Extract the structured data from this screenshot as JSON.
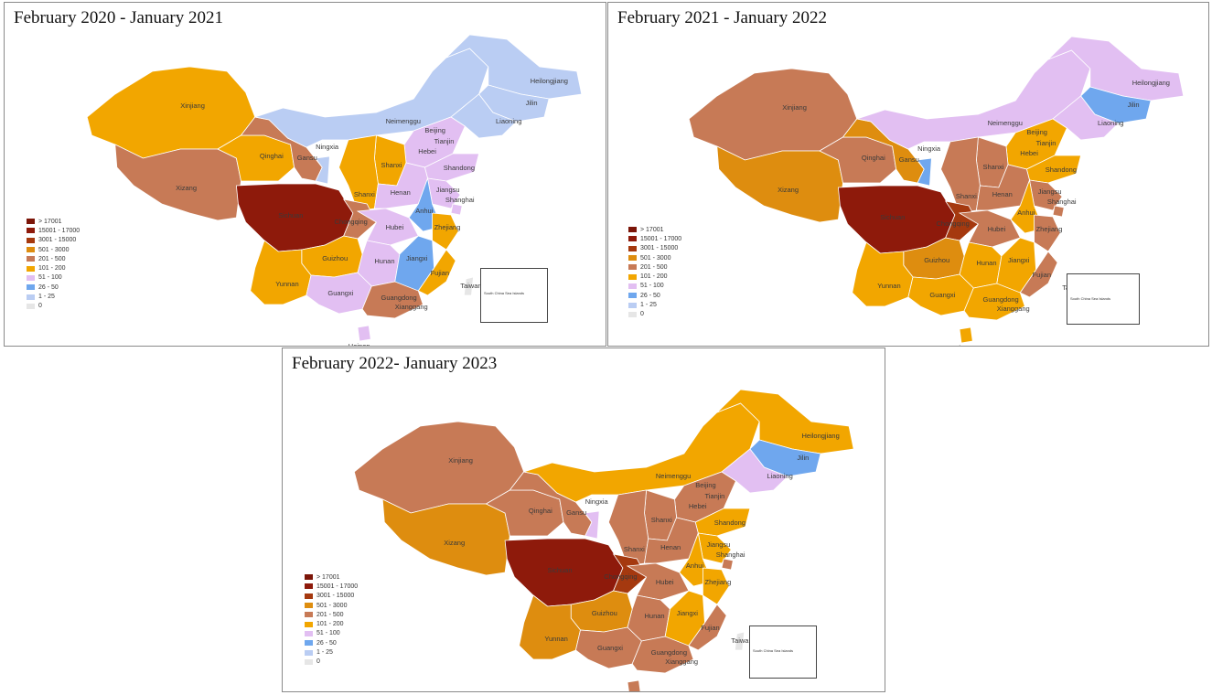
{
  "legend": {
    "items": [
      {
        "label": "> 17001",
        "color": "#7b1508"
      },
      {
        "label": "15001 - 17000",
        "color": "#8e1a0b"
      },
      {
        "label": "3001 - 15000",
        "color": "#a5390f"
      },
      {
        "label": "501 - 3000",
        "color": "#de8d0f"
      },
      {
        "label": "201 - 500",
        "color": "#c77a56"
      },
      {
        "label": "101 - 200",
        "color": "#f2a600"
      },
      {
        "label": "51 - 100",
        "color": "#e2bff2"
      },
      {
        "label": "26 - 50",
        "color": "#6fa7ee"
      },
      {
        "label": "1 - 25",
        "color": "#bacdf3"
      },
      {
        "label": "0",
        "color": "#e6e6e6"
      }
    ]
  },
  "inset_label": "South China Sea Islands",
  "panels": [
    {
      "title": "February 2020 - January 2021",
      "regions": {
        "Xinjiang": "101 - 200",
        "Xizang": "201 - 500",
        "Qinghai": "101 - 200",
        "Gansu": "201 - 500",
        "Neimenggu": "1 - 25",
        "Heilongjiang": "1 - 25",
        "Jilin": "1 - 25",
        "Liaoning": "1 - 25",
        "Ningxia": "1 - 25",
        "Beijing": "26 - 50",
        "Tianjin": "26 - 50",
        "Hebei": "51 - 100",
        "Shanxi_N": "101 - 200",
        "Shandong": "51 - 100",
        "Shaanxi": "101 - 200",
        "Henan": "51 - 100",
        "Jiangsu": "51 - 100",
        "Anhui": "26 - 50",
        "Shanghai": "51 - 100",
        "Sichuan": "15001 - 17000",
        "Chongqing": "201 - 500",
        "Hubei": "51 - 100",
        "Hunan": "51 - 100",
        "Jiangxi": "26 - 50",
        "Zhejiang": "101 - 200",
        "Guizhou": "101 - 200",
        "Yunnan": "101 - 200",
        "Guangxi": "51 - 100",
        "Guangdong": "201 - 500",
        "Fujian": "101 - 200",
        "Hainan": "51 - 100",
        "Taiwan": "0"
      }
    },
    {
      "title": "February 2021 - January 2022",
      "regions": {
        "Xinjiang": "201 - 500",
        "Xizang": "501 - 3000",
        "Qinghai": "201 - 500",
        "Gansu": "501 - 3000",
        "Neimenggu": "51 - 100",
        "Heilongjiang": "51 - 100",
        "Jilin": "26 - 50",
        "Liaoning": "51 - 100",
        "Ningxia": "26 - 50",
        "Beijing": "101 - 200",
        "Tianjin": "101 - 200",
        "Hebei": "101 - 200",
        "Shanxi_N": "201 - 500",
        "Shandong": "101 - 200",
        "Shaanxi": "201 - 500",
        "Henan": "201 - 500",
        "Jiangsu": "201 - 500",
        "Anhui": "101 - 200",
        "Shanghai": "201 - 500",
        "Sichuan": "15001 - 17000",
        "Chongqing": "3001 - 15000",
        "Hubei": "201 - 500",
        "Hunan": "101 - 200",
        "Jiangxi": "101 - 200",
        "Zhejiang": "201 - 500",
        "Guizhou": "501 - 3000",
        "Yunnan": "101 - 200",
        "Guangxi": "101 - 200",
        "Guangdong": "101 - 200",
        "Fujian": "201 - 500",
        "Hainan": "101 - 200",
        "Taiwan": "0"
      }
    },
    {
      "title": "February 2022- January 2023",
      "regions": {
        "Xinjiang": "201 - 500",
        "Xizang": "501 - 3000",
        "Qinghai": "201 - 500",
        "Gansu": "201 - 500",
        "Neimenggu": "101 - 200",
        "Heilongjiang": "101 - 200",
        "Jilin": "26 - 50",
        "Liaoning": "51 - 100",
        "Ningxia": "51 - 100",
        "Beijing": "101 - 200",
        "Tianjin": "101 - 200",
        "Hebei": "201 - 500",
        "Shanxi_N": "201 - 500",
        "Shandong": "101 - 200",
        "Shaanxi": "201 - 500",
        "Henan": "201 - 500",
        "Jiangsu": "101 - 200",
        "Anhui": "101 - 200",
        "Shanghai": "201 - 500",
        "Sichuan": "15001 - 17000",
        "Chongqing": "3001 - 15000",
        "Hubei": "201 - 500",
        "Hunan": "201 - 500",
        "Jiangxi": "101 - 200",
        "Zhejiang": "101 - 200",
        "Guizhou": "501 - 3000",
        "Yunnan": "501 - 3000",
        "Guangxi": "201 - 500",
        "Guangdong": "201 - 500",
        "Fujian": "201 - 500",
        "Hainan": "201 - 500",
        "Taiwan": "0"
      }
    }
  ],
  "labels": {
    "Xinjiang": "Xinjiang",
    "Xizang": "Xizang",
    "Qinghai": "Qinghai",
    "Gansu": "Gansu",
    "Neimenggu": "Neimenggu",
    "Heilongjiang": "Heilongjiang",
    "Jilin": "Jilin",
    "Liaoning": "Liaoning",
    "Ningxia": "Ningxia",
    "Beijing": "Beijing",
    "Tianjin": "Tianjin",
    "Hebei": "Hebei",
    "Shanxi_N": "Shanxi",
    "Shandong": "Shandong",
    "Shaanxi": "Shanxi",
    "Henan": "Henan",
    "Jiangsu": "Jiangsu",
    "Anhui": "Anhui",
    "Shanghai": "Shanghai",
    "Sichuan": "Sichuan",
    "Chongqing": "Chongqing",
    "Hubei": "Hubei",
    "Hunan": "Hunan",
    "Jiangxi": "Jiangxi",
    "Zhejiang": "Zhejiang",
    "Guizhou": "Guizhou",
    "Yunnan": "Yunnan",
    "Guangxi": "Guangxi",
    "Guangdong": "Guangdong",
    "Fujian": "Fujian",
    "Hainan": "Hainan",
    "Taiwan": "Taiwan",
    "Xianggang": "Xianggang"
  }
}
